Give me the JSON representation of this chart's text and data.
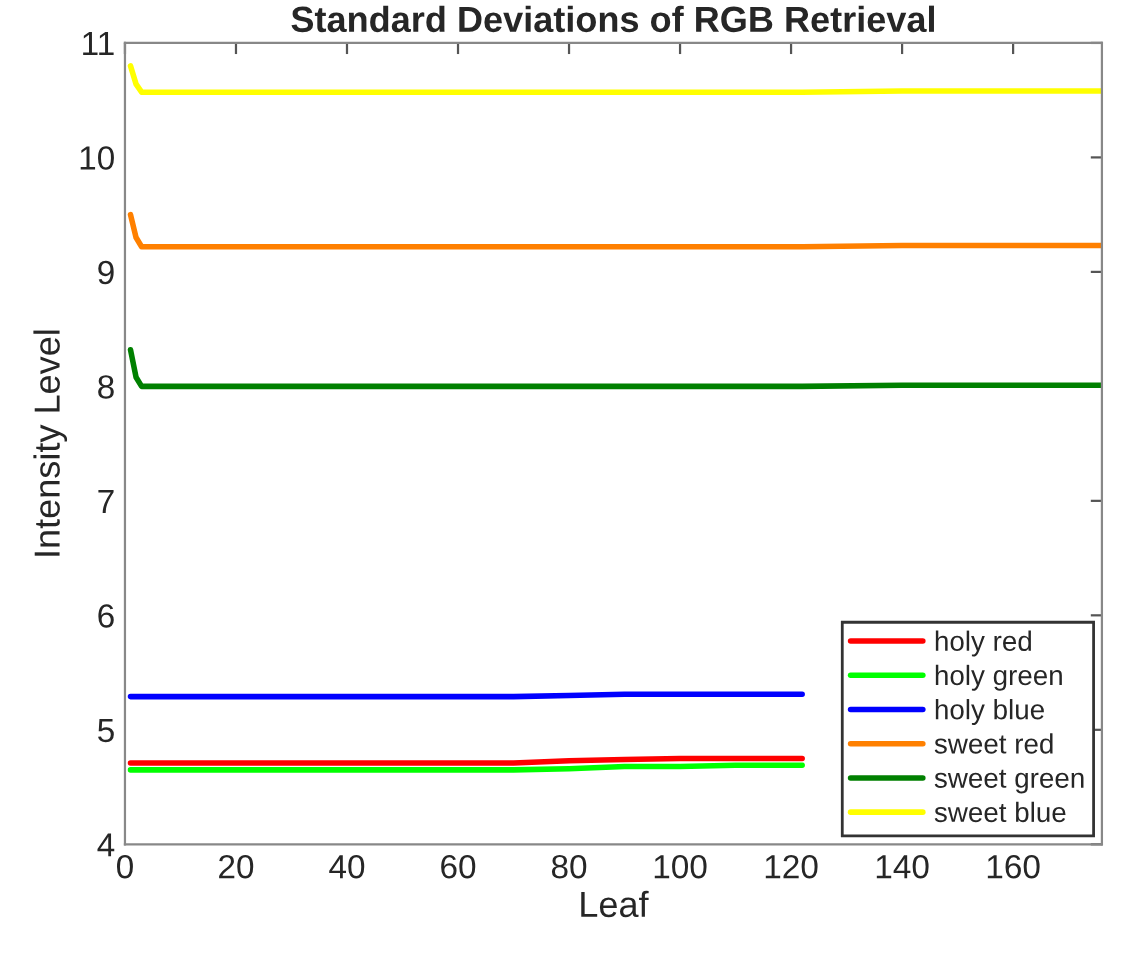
{
  "chart_data": {
    "type": "line",
    "title": "Standard Deviations of RGB Retrieval",
    "xlabel": "Leaf",
    "ylabel": "Intensity Level",
    "x": [
      1,
      2,
      3,
      5,
      20,
      40,
      60,
      70,
      80,
      90,
      100,
      110,
      120,
      122,
      140,
      160,
      176
    ],
    "xlim": [
      0,
      176
    ],
    "xticks": [
      0,
      20,
      40,
      60,
      80,
      100,
      120,
      140,
      160
    ],
    "ylim": [
      4,
      11
    ],
    "yticks": [
      4,
      5,
      6,
      7,
      8,
      9,
      10,
      11
    ],
    "grid": false,
    "legend": "bottom right",
    "line_style": "solid",
    "marker": "none",
    "series": [
      {
        "name": "holy red",
        "color": "#ff0000",
        "values": [
          4.71,
          4.71,
          4.71,
          4.71,
          4.71,
          4.71,
          4.71,
          4.71,
          4.73,
          4.74,
          4.75,
          4.75,
          4.75,
          4.75,
          null,
          null,
          null
        ]
      },
      {
        "name": "holy green",
        "color": "#00ff00",
        "values": [
          4.65,
          4.65,
          4.65,
          4.65,
          4.65,
          4.65,
          4.65,
          4.65,
          4.66,
          4.68,
          4.68,
          4.69,
          4.69,
          4.69,
          null,
          null,
          null
        ]
      },
      {
        "name": "holy blue",
        "color": "#0000ff",
        "values": [
          5.29,
          5.29,
          5.29,
          5.29,
          5.29,
          5.29,
          5.29,
          5.29,
          5.3,
          5.31,
          5.31,
          5.31,
          5.31,
          5.31,
          null,
          null,
          null
        ]
      },
      {
        "name": "sweet red",
        "color": "#ff8000",
        "values": [
          9.5,
          9.3,
          9.22,
          9.22,
          9.22,
          9.22,
          9.22,
          9.22,
          9.22,
          9.22,
          9.22,
          9.22,
          9.22,
          9.22,
          9.23,
          9.23,
          9.23
        ]
      },
      {
        "name": "sweet green",
        "color": "#008000",
        "values": [
          8.32,
          8.08,
          8.0,
          8.0,
          8.0,
          8.0,
          8.0,
          8.0,
          8.0,
          8.0,
          8.0,
          8.0,
          8.0,
          8.0,
          8.01,
          8.01,
          8.01
        ]
      },
      {
        "name": "sweet blue",
        "color": "#ffff00",
        "values": [
          10.8,
          10.64,
          10.57,
          10.57,
          10.57,
          10.57,
          10.57,
          10.57,
          10.57,
          10.57,
          10.57,
          10.57,
          10.57,
          10.57,
          10.58,
          10.58,
          10.58
        ]
      }
    ]
  }
}
